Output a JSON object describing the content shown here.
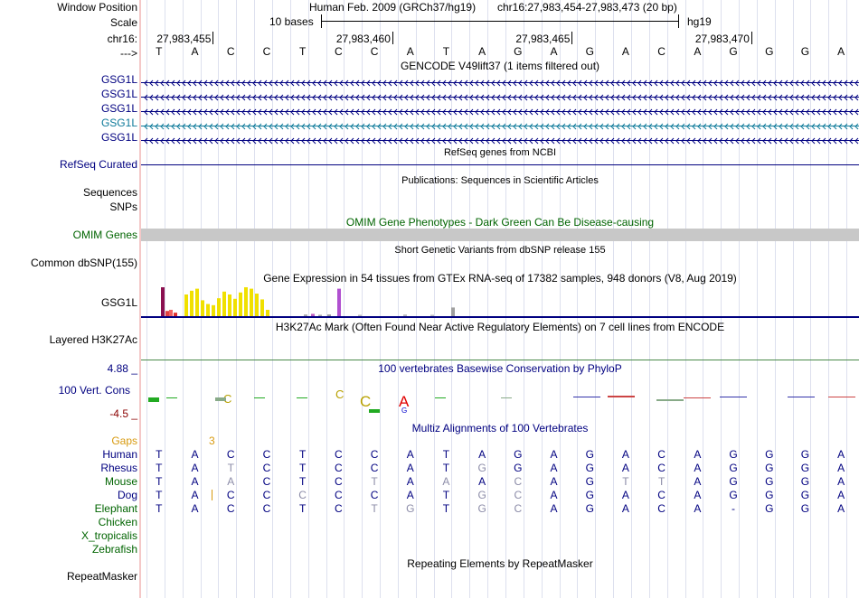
{
  "header": {
    "window_position_label": "Window Position",
    "assembly": "Human Feb. 2009 (GRCh37/hg19)",
    "range": "chr16:27,983,454-27,983,473 (20 bp)",
    "scale_label": "Scale",
    "scale_text": "10 bases",
    "db": "hg19",
    "chrom_label": "chr16:",
    "positions": [
      "27,983,455",
      "27,983,460",
      "27,983,465",
      "27,983,470"
    ],
    "strand_label": "--->"
  },
  "sequence": [
    "T",
    "A",
    "C",
    "C",
    "T",
    "C",
    "C",
    "A",
    "T",
    "A",
    "G",
    "A",
    "G",
    "A",
    "C",
    "A",
    "G",
    "G",
    "G",
    "A"
  ],
  "gencode": {
    "title": "GENCODE V49lift37 (1 items filtered out)",
    "genes": [
      {
        "label": "GSG1L",
        "color": "#000080"
      },
      {
        "label": "GSG1L",
        "color": "#000080"
      },
      {
        "label": "GSG1L",
        "color": "#000080"
      },
      {
        "label": "GSG1L",
        "color": "#0e7a9a"
      },
      {
        "label": "GSG1L",
        "color": "#000080"
      }
    ]
  },
  "refseq": {
    "title": "RefSeq genes from NCBI",
    "label": "RefSeq Curated"
  },
  "pubs": {
    "title": "Publications: Sequences in Scientific Articles",
    "label_sequences": "Sequences",
    "label_snps": "SNPs"
  },
  "omim": {
    "title": "OMIM Gene Phenotypes - Dark Green Can Be Disease-causing",
    "label": "OMIM Genes"
  },
  "dbsnp": {
    "title": "Short Genetic Variants from dbSNP release 155",
    "label": "Common dbSNP(155)"
  },
  "gtex": {
    "title": "Gene Expression in 54 tissues from GTEx RNA-seq of 17382 samples, 948 donors (V8, Aug 2019)",
    "label": "GSG1L"
  },
  "h3k27ac": {
    "title": "H3K27Ac Mark (Often Found Near Active Regulatory Elements) on 7 cell lines from ENCODE",
    "label": "Layered H3K27Ac"
  },
  "phylop": {
    "title": "100 vertebrates Basewise Conservation by PhyloP",
    "label": "100 Vert. Cons",
    "max": "4.88 _",
    "min": "-4.5 _"
  },
  "multiz": {
    "title": "Multiz Alignments of 100 Vertebrates",
    "gaps_label": "Gaps",
    "gap_count": "3",
    "species": [
      {
        "label": "Human",
        "bases": [
          "T",
          "A",
          "C",
          "C",
          "T",
          "C",
          "C",
          "A",
          "T",
          "A",
          "G",
          "A",
          "G",
          "A",
          "C",
          "A",
          "G",
          "G",
          "G",
          "A"
        ],
        "faint": []
      },
      {
        "label": "Rhesus",
        "bases": [
          "T",
          "A",
          "T",
          "C",
          "T",
          "C",
          "C",
          "A",
          "T",
          "G",
          "G",
          "A",
          "G",
          "A",
          "C",
          "A",
          "G",
          "G",
          "G",
          "A"
        ],
        "faint": [
          2,
          9
        ]
      },
      {
        "label": "Mouse",
        "bases": [
          "T",
          "A",
          "A",
          "C",
          "T",
          "C",
          "T",
          "A",
          "A",
          "A",
          "C",
          "A",
          "G",
          "T",
          "T",
          "A",
          "G",
          "G",
          "G",
          "A"
        ],
        "faint": [
          2,
          6,
          8,
          10,
          13,
          14
        ]
      },
      {
        "label": "Dog",
        "bases": [
          "T",
          "A",
          "C",
          "C",
          "C",
          "C",
          "C",
          "A",
          "T",
          "G",
          "C",
          "A",
          "G",
          "A",
          "C",
          "A",
          "G",
          "G",
          "G",
          "A"
        ],
        "faint": [
          4,
          9,
          10
        ]
      },
      {
        "label": "Elephant",
        "bases": [
          "T",
          "A",
          "C",
          "C",
          "T",
          "C",
          "T",
          "G",
          "T",
          "G",
          "C",
          "A",
          "G",
          "A",
          "C",
          "A",
          "-",
          "G",
          "G",
          "A"
        ],
        "faint": [
          6,
          7,
          9,
          10
        ]
      },
      {
        "label": "Chicken",
        "bases": [],
        "faint": []
      },
      {
        "label": "X_tropicalis",
        "bases": [],
        "faint": []
      },
      {
        "label": "Zebrafish",
        "bases": [],
        "faint": []
      }
    ]
  },
  "repeatmasker": {
    "title": "Repeating Elements by RepeatMasker",
    "label": "RepeatMasker"
  },
  "colors": {
    "navy": "#000080",
    "omim_bar": "#c8c8c8",
    "gtex_yellow": "#f0e000",
    "sep": "#f4c8c8"
  }
}
